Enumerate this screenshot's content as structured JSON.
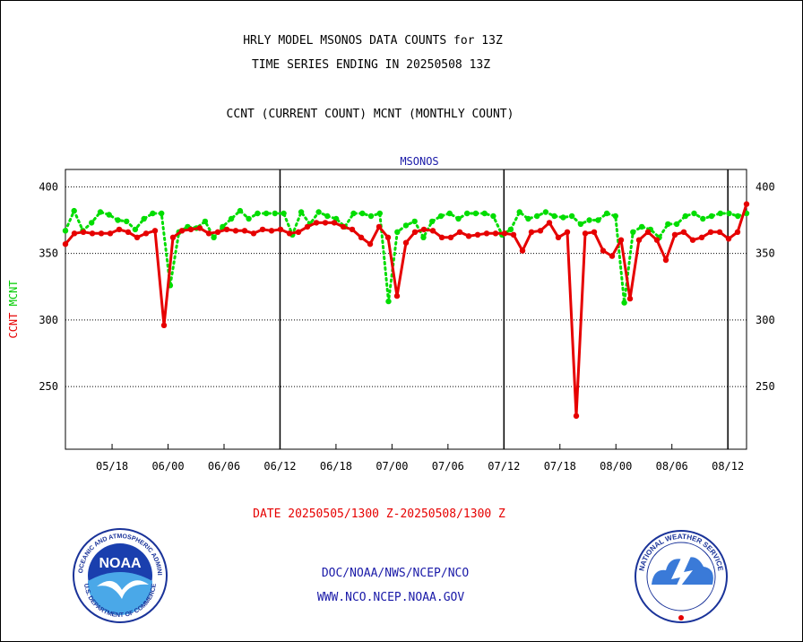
{
  "header": {
    "line1": "HRLY MODEL MSONOS DATA COUNTS for 13Z",
    "line2": "TIME SERIES ENDING IN 20250508 13Z",
    "line3": "CCNT (CURRENT COUNT) MCNT (MONTHLY COUNT)"
  },
  "footer": {
    "date_range": "DATE 20250505/1300 Z-20250508/1300 Z",
    "org_path": "DOC/NOAA/NWS/NCEP/NCO",
    "website": "WWW.NCO.NCEP.NOAA.GOV"
  },
  "logos": {
    "noaa_text": "NOAA",
    "noaa_ring": "NATIONAL OCEANIC AND ATMOSPHERIC ADMINISTRATION",
    "commerce_ring": "U.S. DEPARTMENT OF COMMERCE",
    "nws_ring": "NATIONAL WEATHER SERVICE"
  },
  "chart_data": {
    "type": "line",
    "title": "MSONOS",
    "xlabel": "",
    "ylabel_parts": [
      {
        "text": "CCNT",
        "color": "#e60000"
      },
      {
        "text": "MCNT",
        "color": "#00cc00"
      }
    ],
    "ylim": [
      203,
      413
    ],
    "yticks": [
      250,
      300,
      350,
      400
    ],
    "grid": true,
    "x_range_hours": [
      0,
      73
    ],
    "xticks": [
      {
        "label": "05/18",
        "hour": 5
      },
      {
        "label": "06/00",
        "hour": 11
      },
      {
        "label": "06/06",
        "hour": 17
      },
      {
        "label": "06/12",
        "hour": 23
      },
      {
        "label": "06/18",
        "hour": 29
      },
      {
        "label": "07/00",
        "hour": 35
      },
      {
        "label": "07/06",
        "hour": 41
      },
      {
        "label": "07/12",
        "hour": 47
      },
      {
        "label": "07/18",
        "hour": 53
      },
      {
        "label": "08/00",
        "hour": 59
      },
      {
        "label": "08/06",
        "hour": 65
      },
      {
        "label": "08/12",
        "hour": 71
      }
    ],
    "day_boundaries_hours": [
      23,
      47,
      71
    ],
    "series": [
      {
        "name": "CCNT",
        "color": "#e60000",
        "style": "solid",
        "values": [
          357,
          365,
          366,
          365,
          365,
          365,
          368,
          366,
          362,
          365,
          367,
          296,
          362,
          367,
          368,
          369,
          365,
          366,
          368,
          367,
          367,
          365,
          368,
          367,
          368,
          365,
          366,
          370,
          373,
          373,
          373,
          370,
          368,
          362,
          357,
          370,
          362,
          318,
          358,
          366,
          368,
          367,
          362,
          362,
          366,
          363,
          364,
          365,
          365,
          365,
          364,
          352,
          366,
          367,
          373,
          362,
          366,
          228,
          365,
          366,
          352,
          348,
          360,
          316,
          360,
          366,
          360,
          345,
          364,
          366,
          360,
          362,
          366,
          366,
          361,
          366,
          387
        ]
      },
      {
        "name": "MCNT",
        "color": "#00dd00",
        "style": "dotted",
        "values": [
          367,
          382,
          367,
          373,
          381,
          379,
          375,
          374,
          368,
          376,
          380,
          380,
          326,
          366,
          370,
          369,
          374,
          362,
          370,
          376,
          382,
          376,
          380,
          380,
          380,
          380,
          364,
          381,
          372,
          381,
          378,
          376,
          370,
          380,
          380,
          378,
          380,
          314,
          366,
          371,
          374,
          362,
          374,
          378,
          380,
          376,
          380,
          380,
          380,
          378,
          364,
          368,
          381,
          376,
          378,
          381,
          378,
          377,
          378,
          372,
          375,
          375,
          380,
          378,
          313,
          366,
          370,
          368,
          362,
          372,
          372,
          378,
          380,
          376,
          378,
          380,
          380,
          378,
          380
        ]
      }
    ]
  }
}
